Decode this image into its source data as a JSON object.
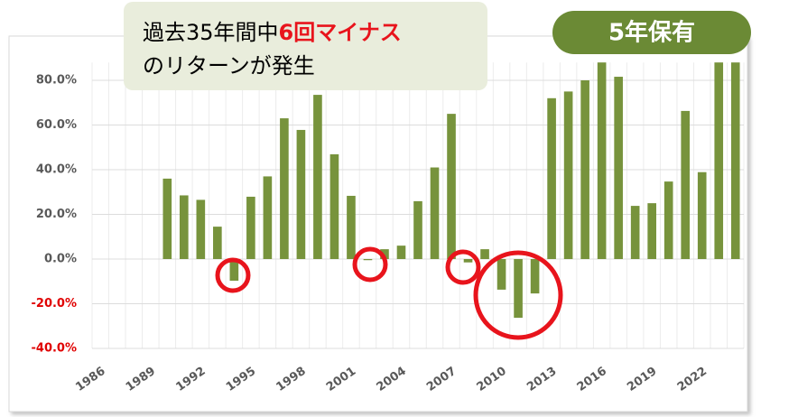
{
  "chart_data": {
    "type": "bar",
    "annotation": {
      "before": "過去35年間中",
      "highlight": "6回マイナス",
      "after": "のリターンが発生"
    },
    "badge": "5年保有",
    "categories": [
      "1986",
      null,
      null,
      "1989",
      null,
      null,
      "1992",
      null,
      null,
      "1995",
      null,
      null,
      "1998",
      null,
      null,
      "2001",
      null,
      null,
      "2004",
      null,
      null,
      "2007",
      null,
      null,
      "2010",
      null,
      null,
      "2013",
      null,
      null,
      "2016",
      null,
      null,
      "2019",
      null,
      null,
      "2022",
      null,
      null
    ],
    "values": [
      null,
      null,
      null,
      null,
      36,
      28.5,
      26.5,
      14.5,
      -9.7,
      27.9,
      37,
      63,
      57.8,
      73.5,
      46.9,
      28.3,
      -0.5,
      4.4,
      6,
      25.9,
      41,
      65,
      -1.5,
      4.4,
      -13.7,
      -26.3,
      -15.4,
      72,
      75,
      80,
      88,
      81.6,
      23.8,
      25,
      34.7,
      66.3,
      38.9,
      88,
      88
    ],
    "color": "#77933c",
    "ylim": [
      -40,
      88
    ],
    "yticks": [
      {
        "value": -40,
        "label": "-40.0%"
      },
      {
        "value": -20,
        "label": "-20.0%"
      },
      {
        "value": 0,
        "label": "0.0%"
      },
      {
        "value": 20,
        "label": "20.0%"
      },
      {
        "value": 40,
        "label": "40.0%"
      },
      {
        "value": 60,
        "label": "60.0%"
      },
      {
        "value": 80,
        "label": "80.0%"
      }
    ],
    "negative_tick_color": "#e00000",
    "grid": true
  }
}
